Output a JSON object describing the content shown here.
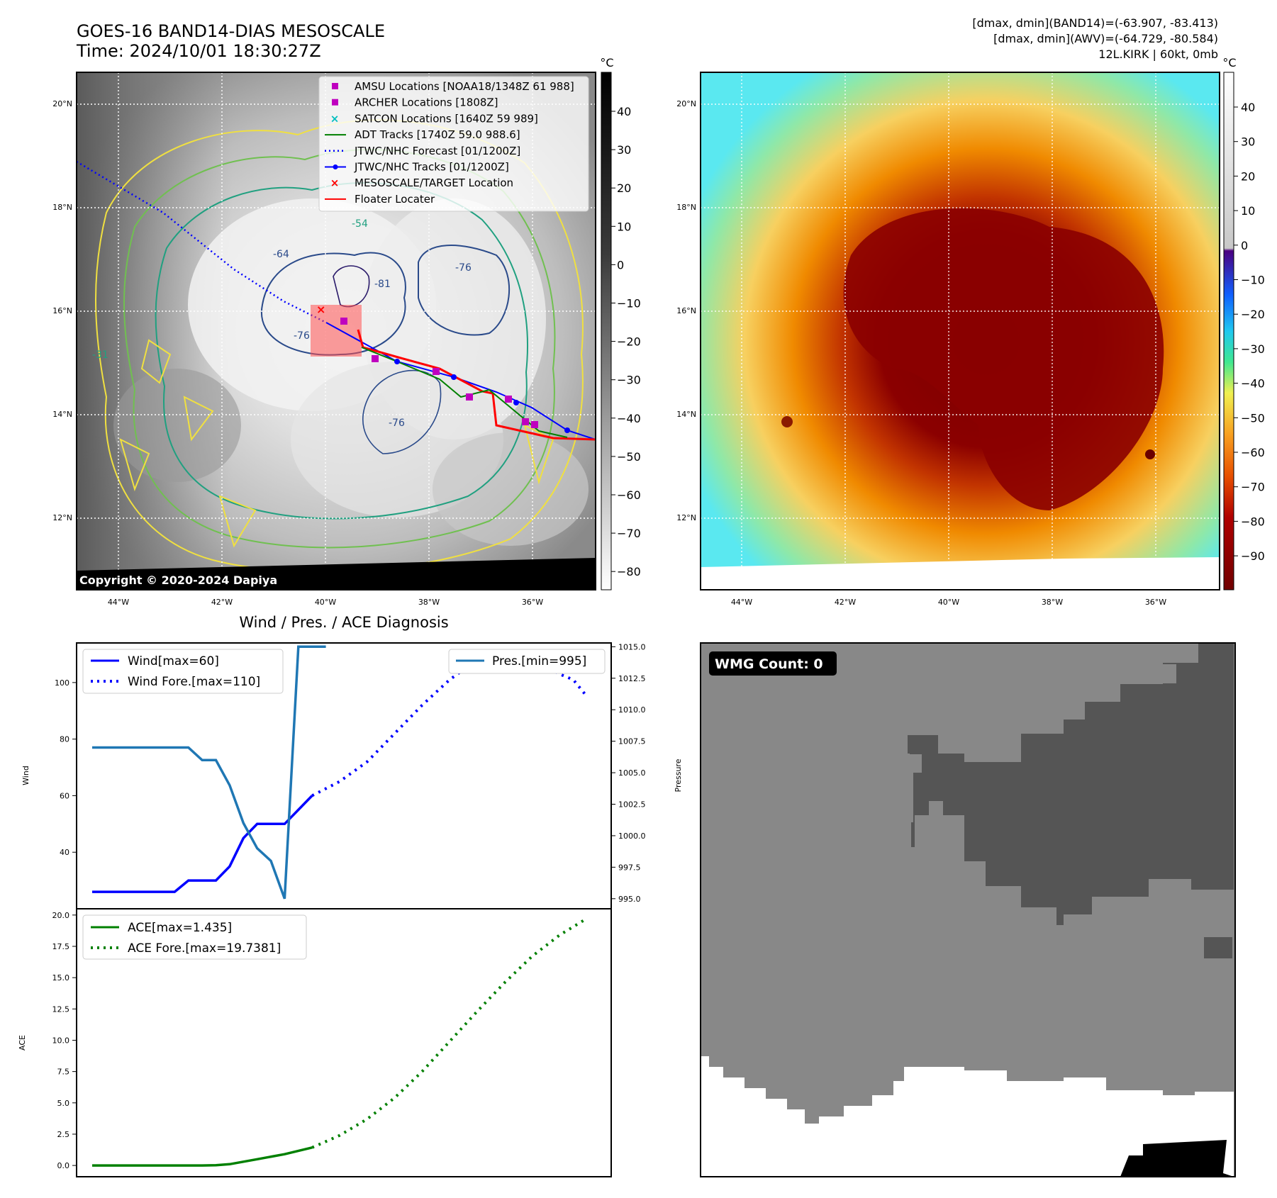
{
  "header": {
    "title": "GOES-16 BAND14-DIAS MESOSCALE",
    "time": "Time: 2024/10/01 18:30:27Z",
    "stat1": "[dmax, dmin](BAND14)=(-63.907, -83.413)",
    "stat2": "[dmax, dmin](AWV)=(-64.729, -80.584)",
    "storm": "12L.KIRK | 60kt, 0mb"
  },
  "maps": {
    "lat_labels": [
      "20°N",
      "18°N",
      "16°N",
      "14°N",
      "12°N"
    ],
    "lon_labels": [
      "44°W",
      "42°W",
      "40°W",
      "38°W",
      "36°W"
    ],
    "copyright": "Copyright © 2020-2024 Dapiya",
    "contour_labels": [
      "-64",
      "-54",
      "-76",
      "-81",
      "-76",
      "-76",
      "-31"
    ],
    "cbar_unit": "°C",
    "cbar1_ticks": [
      "40",
      "30",
      "20",
      "10",
      "0",
      "−10",
      "−20",
      "−30",
      "−40",
      "−50",
      "−60",
      "−70",
      "−80"
    ],
    "cbar2_ticks": [
      "40",
      "30",
      "20",
      "10",
      "0",
      "−10",
      "−20",
      "−30",
      "−40",
      "−50",
      "−60",
      "−70",
      "−80",
      "−90"
    ],
    "legend": [
      {
        "label": "AMSU Locations [NOAA18/1348Z 61 988]",
        "color": "#bf00bf",
        "kind": "square"
      },
      {
        "label": "ARCHER Locations [1808Z]",
        "color": "#bf00bf",
        "kind": "square"
      },
      {
        "label": "SATCON Locations [1640Z 59 989]",
        "color": "#00bfbf",
        "kind": "x"
      },
      {
        "label": "ADT Tracks [1740Z 59.0 988.6]",
        "color": "#008000",
        "kind": "line"
      },
      {
        "label": "JTWC/NHC Forecast [01/1200Z]",
        "color": "#0000ff",
        "kind": "dotted"
      },
      {
        "label": "JTWC/NHC Tracks [01/1200Z]",
        "color": "#0000ff",
        "kind": "marker-line"
      },
      {
        "label": "MESOSCALE/TARGET Location",
        "color": "#ff0000",
        "kind": "x"
      },
      {
        "label": "Floater Locater",
        "color": "#ff0000",
        "kind": "line"
      }
    ]
  },
  "diag": {
    "title": "Wind / Pres. / ACE Diagnosis",
    "wind_label": "Wind",
    "pressure_label": "Pressure",
    "ace_label": "ACE",
    "legend_wind": "Wind[max=60]",
    "legend_wind_fore": "Wind Fore.[max=110]",
    "legend_pres": "Pres.[min=995]",
    "legend_ace": "ACE[max=1.435]",
    "legend_ace_fore": "ACE Fore.[max=19.7381]",
    "wind_ticks": [
      "100",
      "80",
      "60",
      "40"
    ],
    "pres_ticks": [
      "1015.0",
      "1012.5",
      "1010.0",
      "1007.5",
      "1005.0",
      "1002.5",
      "1000.0",
      "997.5",
      "995.0"
    ],
    "ace_ticks": [
      "20.0",
      "17.5",
      "15.0",
      "12.5",
      "10.0",
      "7.5",
      "5.0",
      "2.5",
      "0.0"
    ]
  },
  "wmg": {
    "label": "WMG Count: 0"
  },
  "chart_data": [
    {
      "type": "line",
      "name": "wind-pressure",
      "x": [
        0,
        1,
        2,
        3,
        4,
        5,
        6,
        7,
        8,
        9,
        10,
        11,
        12,
        13,
        14,
        15,
        16,
        17,
        18,
        19,
        20,
        21,
        22,
        23,
        24,
        25,
        26,
        27,
        28,
        29,
        30,
        31,
        32,
        33,
        34,
        35,
        36
      ],
      "series": [
        {
          "name": "Wind[max=60]",
          "axis": "Wind",
          "color": "#0000ff",
          "style": "solid",
          "x": [
            0,
            1,
            2,
            3,
            4,
            5,
            6,
            7,
            8,
            9,
            10,
            11,
            12,
            13,
            14,
            15,
            16
          ],
          "values": [
            26,
            26,
            26,
            26,
            26,
            26,
            26,
            30,
            30,
            30,
            35,
            45,
            50,
            50,
            50,
            55,
            60
          ]
        },
        {
          "name": "Wind Fore.[max=110]",
          "axis": "Wind",
          "color": "#0000ff",
          "style": "dotted",
          "x": [
            16,
            18,
            20,
            22,
            24,
            26,
            28,
            30,
            31,
            32,
            34,
            35,
            36
          ],
          "values": [
            60,
            65,
            72,
            82,
            92,
            101,
            108,
            110,
            110,
            108,
            103,
            101,
            95
          ]
        },
        {
          "name": "Pres.[min=995]",
          "axis": "Pressure",
          "color": "#1f77b4",
          "style": "solid",
          "x": [
            0,
            1,
            2,
            3,
            4,
            5,
            6,
            7,
            8,
            9,
            10,
            11,
            12,
            13,
            14,
            15,
            16,
            17
          ],
          "values": [
            1007,
            1007,
            1007,
            1007,
            1007,
            1007,
            1007,
            1007,
            1006,
            1006,
            1004,
            1001,
            999,
            998,
            995,
            1015,
            1015,
            1015
          ]
        }
      ],
      "ylim_wind": [
        20,
        114
      ],
      "ylim_pressure": [
        994.2,
        1015.3
      ]
    },
    {
      "type": "line",
      "name": "ace",
      "series": [
        {
          "name": "ACE[max=1.435]",
          "color": "#008000",
          "style": "solid",
          "x": [
            0,
            2,
            4,
            6,
            8,
            9,
            10,
            12,
            14,
            16
          ],
          "values": [
            0,
            0,
            0,
            0,
            0,
            0.02,
            0.1,
            0.5,
            0.9,
            1.435
          ]
        },
        {
          "name": "ACE Fore.[max=19.7381]",
          "color": "#008000",
          "style": "dotted",
          "x": [
            16,
            18,
            20,
            22,
            24,
            26,
            28,
            30,
            32,
            34,
            36
          ],
          "values": [
            1.435,
            2.4,
            3.7,
            5.4,
            7.5,
            9.9,
            12.3,
            14.6,
            16.7,
            18.4,
            19.7381
          ]
        }
      ],
      "ylim": [
        -0.9,
        20.5
      ]
    }
  ]
}
